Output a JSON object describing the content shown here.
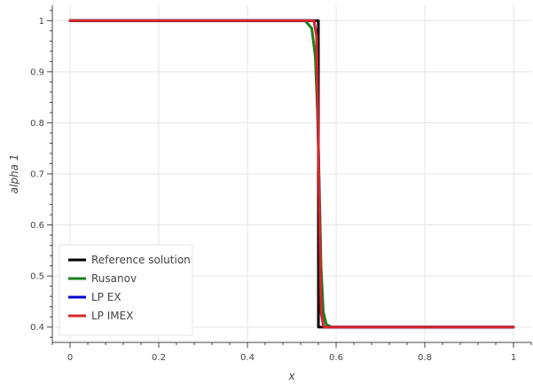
{
  "chart_data": {
    "type": "line",
    "title": "",
    "xlabel": "x",
    "ylabel": "alpha 1",
    "xlim": [
      -0.04,
      1.04
    ],
    "ylim": [
      0.37,
      1.03
    ],
    "x_ticks": [
      0,
      0.2,
      0.4,
      0.6,
      0.8,
      1
    ],
    "x_tick_labels": [
      "0",
      "0.2",
      "0.4",
      "0.6",
      "0.8",
      "1"
    ],
    "y_ticks": [
      0.4,
      0.5,
      0.6,
      0.7,
      0.8,
      0.9,
      1
    ],
    "y_tick_labels": [
      "0.4",
      "0.5",
      "0.6",
      "0.7",
      "0.8",
      "0.9",
      "1"
    ],
    "grid": true,
    "legend_position": "bottom-left",
    "series": [
      {
        "name": "Reference solution",
        "color": "#000000",
        "x": [
          0,
          0.56,
          0.5601,
          1
        ],
        "y": [
          1,
          1,
          0.4,
          0.4
        ]
      },
      {
        "name": "Rusanov",
        "color": "#1a7f1a",
        "x": [
          0,
          0.53,
          0.545,
          0.553,
          0.558,
          0.562,
          0.566,
          0.571,
          0.578,
          0.59,
          1
        ],
        "y": [
          1,
          1,
          0.985,
          0.93,
          0.82,
          0.68,
          0.52,
          0.43,
          0.405,
          0.4,
          0.4
        ]
      },
      {
        "name": "LP EX",
        "color": "#0000cc",
        "x": [
          0,
          0.55,
          0.556,
          0.561,
          0.566,
          0.572,
          1
        ],
        "y": [
          1,
          1,
          0.97,
          0.7,
          0.43,
          0.4,
          0.4
        ]
      },
      {
        "name": "LP IMEX",
        "color": "#d62728",
        "x": [
          0,
          0.55,
          0.556,
          0.561,
          0.566,
          0.572,
          1
        ],
        "y": [
          1,
          1,
          0.97,
          0.7,
          0.43,
          0.4,
          0.4
        ]
      }
    ]
  }
}
